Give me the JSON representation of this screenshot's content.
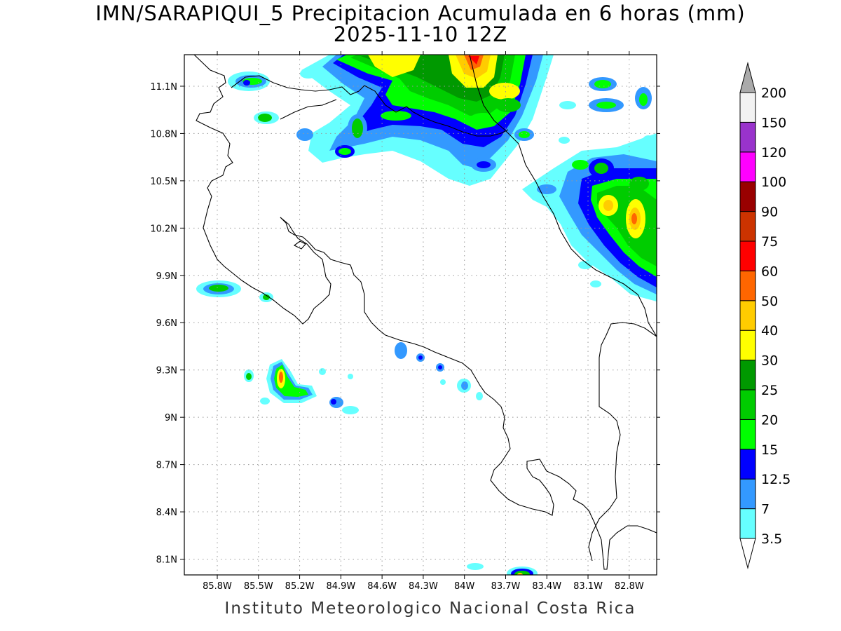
{
  "title": {
    "line1": "IMN/SARAPIQUI_5 Precipitacion Acumulada en 6 horas (mm)",
    "line2": "2025-11-10 12Z"
  },
  "footer": "Instituto Meteorologico Nacional Costa Rica",
  "map": {
    "lon_range": [
      -86.04,
      -82.6
    ],
    "lat_range": [
      8.0,
      11.3
    ],
    "lon_ticks": [
      "85.8W",
      "85.5W",
      "85.2W",
      "84.9W",
      "84.6W",
      "84.3W",
      "84W",
      "83.7W",
      "83.4W",
      "83.1W",
      "82.8W"
    ],
    "lon_tick_values": [
      -85.8,
      -85.5,
      -85.2,
      -84.9,
      -84.6,
      -84.3,
      -84.0,
      -83.7,
      -83.4,
      -83.1,
      -82.8
    ],
    "lat_ticks": [
      "11.1N",
      "10.8N",
      "10.5N",
      "10.2N",
      "9.9N",
      "9.6N",
      "9.3N",
      "9N",
      "8.7N",
      "8.4N",
      "8.1N"
    ],
    "lat_tick_values": [
      11.1,
      10.8,
      10.5,
      10.2,
      9.9,
      9.6,
      9.3,
      9.0,
      8.7,
      8.4,
      8.1
    ],
    "grid": "dotted"
  },
  "colorbar": {
    "levels": [
      "3.5",
      "7",
      "12.5",
      "15",
      "20",
      "25",
      "30",
      "40",
      "50",
      "60",
      "75",
      "90",
      "100",
      "120",
      "150",
      "200"
    ],
    "colors": [
      "#ffffff",
      "#66ffff",
      "#3399ff",
      "#0000ff",
      "#00ff00",
      "#00cc00",
      "#009900",
      "#ffff00",
      "#ffcc00",
      "#ff6600",
      "#ff0000",
      "#cc3300",
      "#990000",
      "#ff00ff",
      "#9933cc",
      "#f2f2f2",
      "#aaaaaa"
    ]
  },
  "precip_cells": [
    {
      "lon": -85.48,
      "lat": 11.15,
      "value": 20
    },
    {
      "lon": -85.45,
      "lat": 10.92,
      "value": 20
    },
    {
      "lon": -85.78,
      "lat": 9.83,
      "value": 25
    },
    {
      "lon": -85.48,
      "lat": 9.77,
      "value": 20
    },
    {
      "lon": -85.28,
      "lat": 9.27,
      "value": 40
    },
    {
      "lon": -85.5,
      "lat": 9.25,
      "value": 20
    },
    {
      "lon": -84.9,
      "lat": 9.1,
      "value": 12.5
    },
    {
      "lon": -84.3,
      "lat": 9.43,
      "value": 7
    },
    {
      "lon": -84.05,
      "lat": 9.32,
      "value": 7
    },
    {
      "lon": -83.48,
      "lat": 8.03,
      "value": 25
    },
    {
      "lon": -83.92,
      "lat": 8.06,
      "value": 3.5
    },
    {
      "lon": -84.45,
      "lat": 11.22,
      "value": 40
    },
    {
      "lon": -83.9,
      "lat": 11.25,
      "value": 60
    },
    {
      "lon": -84.15,
      "lat": 11.08,
      "value": 20
    },
    {
      "lon": -83.7,
      "lat": 11.05,
      "value": 30
    },
    {
      "lon": -83.8,
      "lat": 10.98,
      "value": 40
    },
    {
      "lon": -84.4,
      "lat": 10.92,
      "value": 15
    },
    {
      "lon": -84.62,
      "lat": 10.88,
      "value": 20
    },
    {
      "lon": -83.5,
      "lat": 10.8,
      "value": 20
    },
    {
      "lon": -83.42,
      "lat": 10.58,
      "value": 15
    },
    {
      "lon": -82.95,
      "lat": 10.55,
      "value": 25
    },
    {
      "lon": -82.9,
      "lat": 10.35,
      "value": 40
    },
    {
      "lon": -82.75,
      "lat": 10.28,
      "value": 50
    },
    {
      "lon": -82.7,
      "lat": 10.05,
      "value": 25
    },
    {
      "lon": -83.0,
      "lat": 11.12,
      "value": 20
    },
    {
      "lon": -82.85,
      "lat": 11.05,
      "value": 20
    }
  ]
}
